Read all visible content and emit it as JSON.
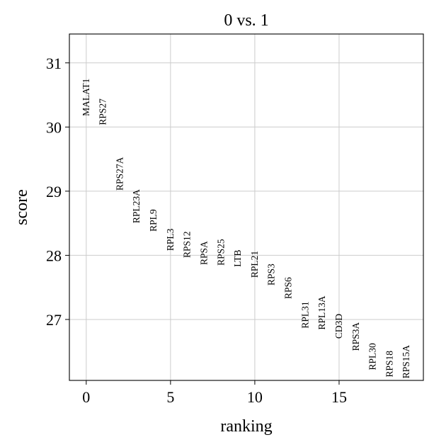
{
  "chart_data": {
    "type": "scatter",
    "title": "0 vs. 1",
    "xlabel": "ranking",
    "ylabel": "score",
    "xlim": [
      -1,
      20
    ],
    "ylim": [
      26.05,
      31.45
    ],
    "xticks": [
      0,
      5,
      10,
      15
    ],
    "xtick_labels": [
      "0",
      "5",
      "10",
      "15"
    ],
    "yticks": [
      27,
      28,
      29,
      30,
      31
    ],
    "ytick_labels": [
      "27",
      "28",
      "29",
      "30",
      "31"
    ],
    "grid": true,
    "series": [
      {
        "points": [
          {
            "x": 0,
            "y": 30.17,
            "label": "MALAT1"
          },
          {
            "x": 1,
            "y": 30.03,
            "label": "RPS27"
          },
          {
            "x": 2,
            "y": 29.01,
            "label": "RPS27A"
          },
          {
            "x": 3,
            "y": 28.5,
            "label": "RPL23A"
          },
          {
            "x": 4,
            "y": 28.37,
            "label": "RPL9"
          },
          {
            "x": 5,
            "y": 28.07,
            "label": "RPL3"
          },
          {
            "x": 6,
            "y": 27.96,
            "label": "RPS12"
          },
          {
            "x": 7,
            "y": 27.85,
            "label": "RPSA"
          },
          {
            "x": 8,
            "y": 27.84,
            "label": "RPS25"
          },
          {
            "x": 9,
            "y": 27.82,
            "label": "LTB"
          },
          {
            "x": 10,
            "y": 27.65,
            "label": "RPL21"
          },
          {
            "x": 11,
            "y": 27.53,
            "label": "RPS3"
          },
          {
            "x": 12,
            "y": 27.32,
            "label": "RPS6"
          },
          {
            "x": 13,
            "y": 26.86,
            "label": "RPL31"
          },
          {
            "x": 14,
            "y": 26.84,
            "label": "RPL13A"
          },
          {
            "x": 15,
            "y": 26.7,
            "label": "CD3D"
          },
          {
            "x": 16,
            "y": 26.51,
            "label": "RPS3A"
          },
          {
            "x": 17,
            "y": 26.21,
            "label": "RPL30"
          },
          {
            "x": 18,
            "y": 26.1,
            "label": "RPS18"
          },
          {
            "x": 19,
            "y": 26.08,
            "label": "RPS15A"
          }
        ]
      }
    ]
  }
}
